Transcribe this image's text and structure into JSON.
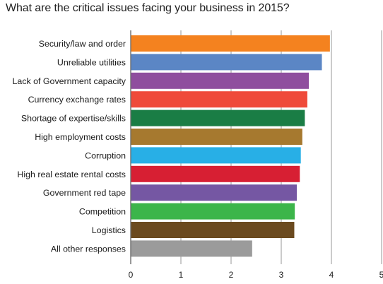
{
  "chart_data": {
    "type": "bar",
    "orientation": "horizontal",
    "title": "What are the critical issues facing your business in 2015?",
    "categories": [
      "Security/law and order",
      "Unreliable utilities",
      "Lack of Government capacity",
      "Currency exchange rates",
      "Shortage of expertise/skills",
      "High employment costs",
      "Corruption",
      "High real estate rental costs",
      "Government red tape",
      "Competition",
      "Logistics",
      "All other responses"
    ],
    "values": [
      3.97,
      3.81,
      3.55,
      3.52,
      3.47,
      3.42,
      3.39,
      3.37,
      3.31,
      3.27,
      3.26,
      2.42
    ],
    "colors": [
      "#f4821f",
      "#5b86c5",
      "#8f4e9e",
      "#ef4a3a",
      "#1a7d45",
      "#a6792f",
      "#28afe6",
      "#d71f33",
      "#7557a3",
      "#3cb54a",
      "#6b4a1f",
      "#9b9b9b"
    ],
    "xticks": [
      "0",
      "1",
      "2",
      "3",
      "4",
      "5"
    ],
    "xlim": [
      0,
      5
    ],
    "xlabel": "",
    "ylabel": "",
    "grid": true,
    "legend": "none"
  }
}
